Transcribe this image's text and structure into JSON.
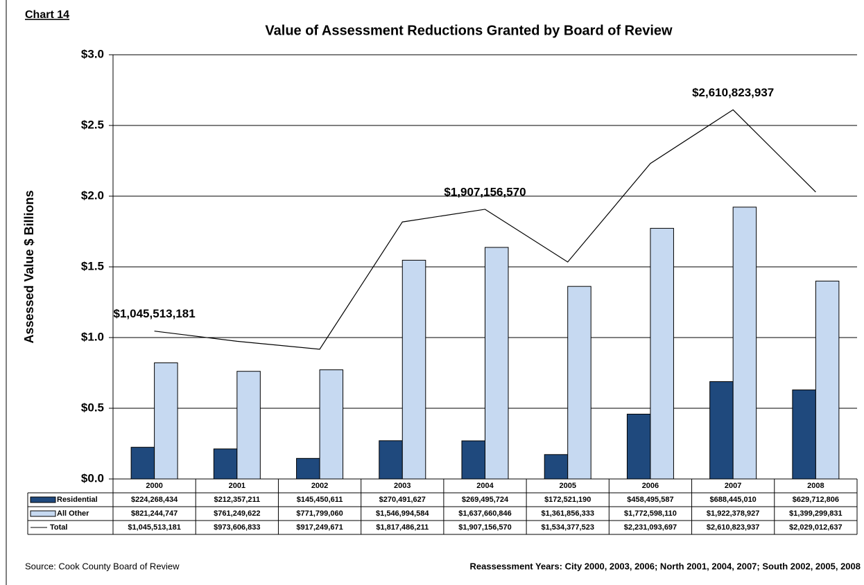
{
  "chart_data": {
    "type": "bar",
    "label": "Chart 14",
    "title": "Value of Assessment Reductions Granted by Board of Review",
    "y_label": "Assessed Value $ Billions",
    "source": "Source: Cook County Board of Review",
    "note": "Reassessment Years: City 2000, 2003, 2006; North 2001, 2004, 2007; South  2002, 2005, 2008",
    "categories": [
      "2000",
      "2001",
      "2002",
      "2003",
      "2004",
      "2005",
      "2006",
      "2007",
      "2008"
    ],
    "ylim": [
      0,
      3
    ],
    "yticks": [
      {
        "value": 0,
        "label": "$0.0"
      },
      {
        "value": 0.5,
        "label": "$0.5"
      },
      {
        "value": 1,
        "label": "$1.0"
      },
      {
        "value": 1.5,
        "label": "$1.5"
      },
      {
        "value": 2,
        "label": "$2.0"
      },
      {
        "value": 2.5,
        "label": "$2.5"
      },
      {
        "value": 3,
        "label": "$3.0"
      }
    ],
    "grid": true,
    "series": [
      {
        "name": "Residential",
        "type": "bar",
        "color": "#1f497d",
        "values": [
          0.224268434,
          0.212357211,
          0.145450611,
          0.270491627,
          0.269495724,
          0.17252119,
          0.458495587,
          0.68844501,
          0.629712806
        ],
        "value_labels": [
          "$224,268,434",
          "$212,357,211",
          "$145,450,611",
          "$270,491,627",
          "$269,495,724",
          "$172,521,190",
          "$458,495,587",
          "$688,445,010",
          "$629,712,806"
        ]
      },
      {
        "name": "All Other",
        "type": "bar",
        "color": "#c6d9f1",
        "values": [
          0.821244747,
          0.761249622,
          0.77179906,
          1.546994584,
          1.637660846,
          1.361856333,
          1.77259811,
          1.922378927,
          1.399299831
        ],
        "value_labels": [
          "$821,244,747",
          "$761,249,622",
          "$771,799,060",
          "$1,546,994,584",
          "$1,637,660,846",
          "$1,361,856,333",
          "$1,772,598,110",
          "$1,922,378,927",
          "$1,399,299,831"
        ]
      },
      {
        "name": "Total",
        "type": "line",
        "color": "#000000",
        "values": [
          1.045513181,
          0.973606833,
          0.917249671,
          1.817486211,
          1.90715657,
          1.534377523,
          2.231093697,
          2.610823937,
          2.029012637
        ],
        "value_labels": [
          "$1,045,513,181",
          "$973,606,833",
          "$917,249,671",
          "$1,817,486,211",
          "$1,907,156,570",
          "$1,534,377,523",
          "$2,231,093,697",
          "$2,610,823,937",
          "$2,029,012,637"
        ]
      }
    ],
    "annotations": [
      {
        "text": "$1,045,513,181",
        "category": "2000"
      },
      {
        "text": "$1,907,156,570",
        "category": "2004"
      },
      {
        "text": "$2,610,823,937",
        "category": "2007"
      }
    ]
  }
}
